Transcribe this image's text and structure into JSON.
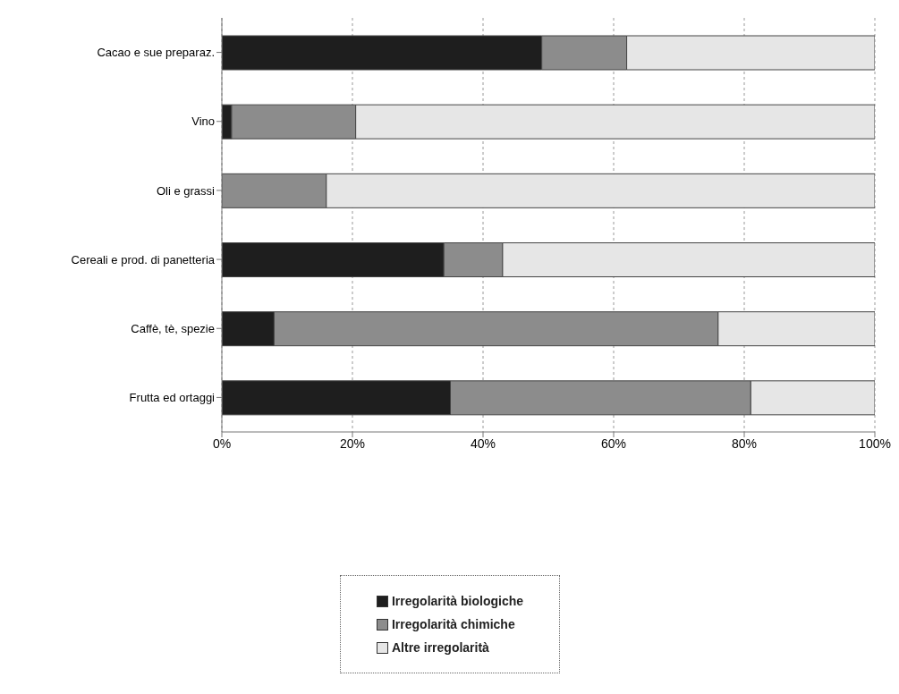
{
  "chart_data": {
    "type": "bar",
    "orientation": "horizontal",
    "stacked": true,
    "categories": [
      "Cacao e sue preparaz.",
      "Vino",
      "Oli e grassi",
      "Cereali e prod. di panetteria",
      "Caffè, tè, spezie",
      "Frutta ed ortaggi"
    ],
    "series": [
      {
        "name": "Irregolarità biologiche",
        "color": "#1e1e1e",
        "values": [
          49,
          1.5,
          0,
          34,
          8,
          35
        ]
      },
      {
        "name": "Irregolarità chimiche",
        "color": "#8c8c8c",
        "values": [
          13,
          19,
          16,
          9,
          68,
          46
        ]
      },
      {
        "name": "Altre irregolarità",
        "color": "#e6e6e6",
        "values": [
          38,
          79.5,
          84,
          57,
          24,
          19
        ]
      }
    ],
    "xlim": [
      0,
      100
    ],
    "xticks": [
      {
        "value": 0,
        "label": "0%"
      },
      {
        "value": 20,
        "label": "20%"
      },
      {
        "value": 40,
        "label": "40%"
      },
      {
        "value": 60,
        "label": "60%"
      },
      {
        "value": 80,
        "label": "80%"
      },
      {
        "value": 100,
        "label": "100%"
      }
    ],
    "grid": "x",
    "legend": "bottom"
  }
}
